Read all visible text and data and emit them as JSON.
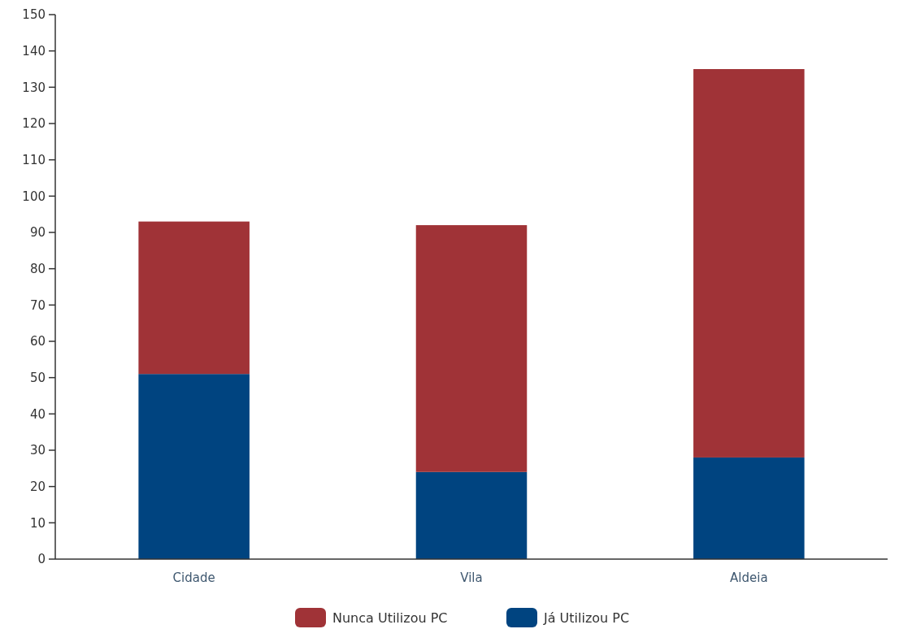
{
  "chart_data": {
    "type": "bar",
    "stacked": true,
    "categories": [
      "Cidade",
      "Vila",
      "Aldeia"
    ],
    "series": [
      {
        "name": "Já Utilizou PC",
        "color": "#004480",
        "values": [
          51,
          24,
          28
        ]
      },
      {
        "name": "Nunca Utilizou PC",
        "color": "#a03337",
        "values": [
          42,
          68,
          107
        ]
      }
    ],
    "ylim": [
      0,
      150
    ],
    "yticks": [
      0,
      10,
      20,
      30,
      40,
      50,
      60,
      70,
      80,
      90,
      100,
      110,
      120,
      130,
      140,
      150
    ],
    "grid": false,
    "legend": "bottom"
  }
}
